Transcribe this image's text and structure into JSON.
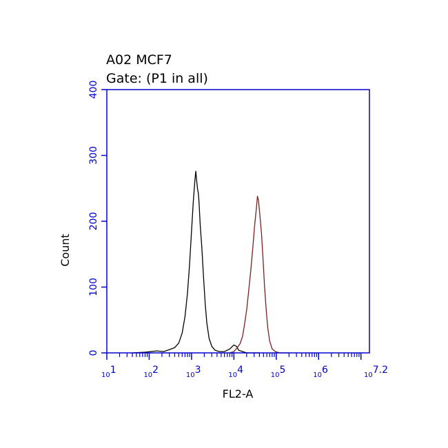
{
  "chart_data": {
    "type": "line",
    "title_lines": [
      "A02 MCF7",
      "Gate: (P1 in all)"
    ],
    "xlabel": "FL2-A",
    "ylabel": "Count",
    "x_scale": "log10",
    "xlim": [
      10,
      15848931.9
    ],
    "ylim": [
      0,
      400
    ],
    "y_ticks": [
      "0",
      "100",
      "200",
      "300",
      "400"
    ],
    "x_ticks": [
      {
        "base": "10",
        "exp": "1"
      },
      {
        "base": "10",
        "exp": "2"
      },
      {
        "base": "10",
        "exp": "3"
      },
      {
        "base": "10",
        "exp": "4"
      },
      {
        "base": "10",
        "exp": "5"
      },
      {
        "base": "10",
        "exp": "6"
      },
      {
        "base": "10",
        "exp": "7.2"
      }
    ],
    "colors": {
      "axis": "#0000cc",
      "tick_text": "#0000cc"
    },
    "series": [
      {
        "color": "#000000",
        "points": [
          [
            40,
            0
          ],
          [
            80,
            1
          ],
          [
            150,
            3
          ],
          [
            220,
            2
          ],
          [
            300,
            5
          ],
          [
            400,
            8
          ],
          [
            500,
            15
          ],
          [
            600,
            30
          ],
          [
            700,
            55
          ],
          [
            800,
            90
          ],
          [
            900,
            135
          ],
          [
            1000,
            185
          ],
          [
            1100,
            230
          ],
          [
            1200,
            262
          ],
          [
            1260,
            276
          ],
          [
            1320,
            262
          ],
          [
            1380,
            250
          ],
          [
            1450,
            242
          ],
          [
            1500,
            230
          ],
          [
            1600,
            195
          ],
          [
            1750,
            160
          ],
          [
            1900,
            120
          ],
          [
            2100,
            75
          ],
          [
            2300,
            45
          ],
          [
            2600,
            22
          ],
          [
            3000,
            10
          ],
          [
            3600,
            4
          ],
          [
            4500,
            2
          ],
          [
            6000,
            2
          ],
          [
            8000,
            6
          ],
          [
            10000,
            12
          ],
          [
            11500,
            10
          ],
          [
            13000,
            4
          ],
          [
            16000,
            2
          ],
          [
            20000,
            0
          ],
          [
            40000,
            0
          ]
        ]
      },
      {
        "color": "#7a1f1f",
        "points": [
          [
            8000,
            0
          ],
          [
            10000,
            2
          ],
          [
            12000,
            8
          ],
          [
            14000,
            14
          ],
          [
            16000,
            25
          ],
          [
            18000,
            45
          ],
          [
            20000,
            65
          ],
          [
            22000,
            90
          ],
          [
            25000,
            125
          ],
          [
            28000,
            160
          ],
          [
            31000,
            195
          ],
          [
            34000,
            220
          ],
          [
            36000,
            238
          ],
          [
            38000,
            232
          ],
          [
            41000,
            210
          ],
          [
            45000,
            180
          ],
          [
            49000,
            140
          ],
          [
            53000,
            100
          ],
          [
            58000,
            65
          ],
          [
            63000,
            38
          ],
          [
            70000,
            18
          ],
          [
            80000,
            6
          ],
          [
            95000,
            2
          ],
          [
            120000,
            0
          ],
          [
            200000,
            0
          ]
        ]
      }
    ]
  }
}
